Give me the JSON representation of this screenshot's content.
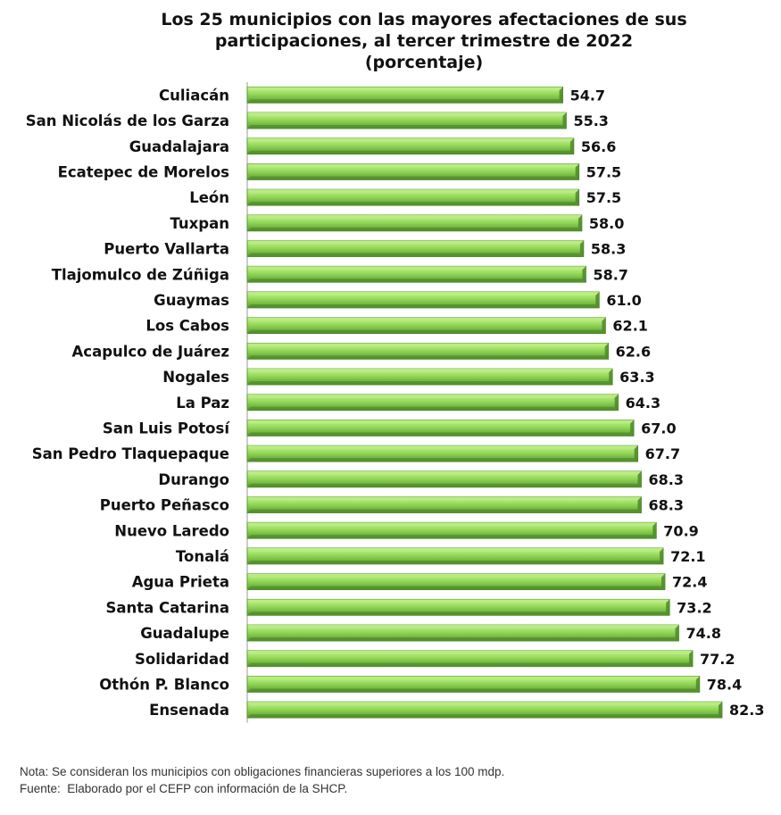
{
  "chart_data": {
    "type": "bar",
    "orientation": "horizontal",
    "title_lines": [
      "Los 25 municipios con las mayores afectaciones de sus",
      "participaciones, al tercer trimestre de 2022",
      "(porcentaje)"
    ],
    "categories": [
      "Culiacán",
      "San Nicolás de los Garza",
      "Guadalajara",
      "Ecatepec de Morelos",
      "León",
      "Tuxpan",
      "Puerto Vallarta",
      "Tlajomulco de Zúñiga",
      "Guaymas",
      "Los Cabos",
      "Acapulco de Juárez",
      "Nogales",
      "La Paz",
      "San Luis Potosí",
      "San Pedro Tlaquepaque",
      "Durango",
      "Puerto Peñasco",
      "Nuevo Laredo",
      "Tonalá",
      "Agua Prieta",
      "Santa Catarina",
      "Guadalupe",
      "Solidaridad",
      "Othón P. Blanco",
      "Ensenada"
    ],
    "values": [
      54.7,
      55.3,
      56.6,
      57.5,
      57.5,
      58.0,
      58.3,
      58.7,
      61.0,
      62.1,
      62.6,
      63.3,
      64.3,
      67.0,
      67.7,
      68.3,
      68.3,
      70.9,
      72.1,
      72.4,
      73.2,
      74.8,
      77.2,
      78.4,
      82.3
    ],
    "value_labels": [
      "54.7",
      "55.3",
      "56.6",
      "57.5",
      "57.5",
      "58.0",
      "58.3",
      "58.7",
      "61.0",
      "62.1",
      "62.6",
      "63.3",
      "64.3",
      "67.0",
      "67.7",
      "68.3",
      "68.3",
      "70.9",
      "72.1",
      "72.4",
      "73.2",
      "74.8",
      "77.2",
      "78.4",
      "82.3"
    ],
    "xlim": [
      0,
      82.3
    ],
    "grid": false,
    "legend": "none",
    "colors": {
      "bar_light": "#b9ec82",
      "bar_main": "#86d14b",
      "bar_dark": "#4f8a2a",
      "axis": "#999999"
    }
  },
  "notes": [
    "Nota: Se consideran los municipios con obligaciones financieras superiores a los 100 mdp.",
    "Fuente:  Elaborado por el CEFP con información de la SHCP."
  ]
}
